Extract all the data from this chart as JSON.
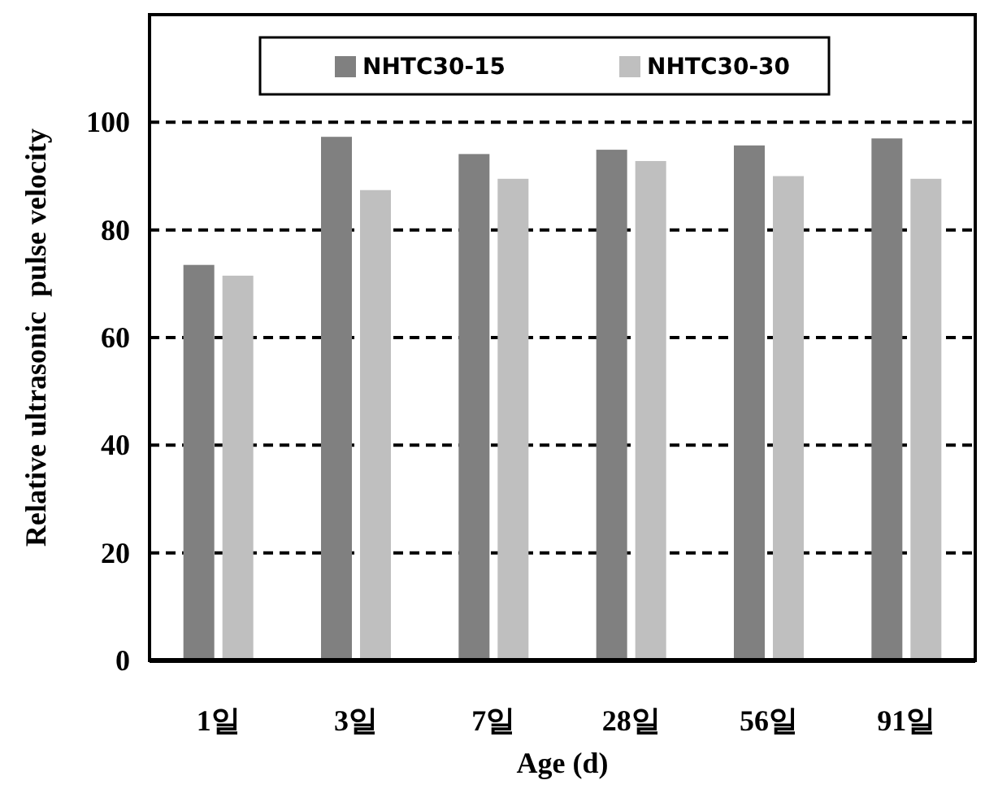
{
  "chart_data": {
    "type": "bar",
    "xlabel": "Age (d)",
    "ylabel": "Relative ultrasonic  pulse velocity",
    "categories": [
      "1일",
      "3일",
      "7일",
      "28일",
      "56일",
      "91일"
    ],
    "series": [
      {
        "name": "NHTC30-15",
        "color": "#808080",
        "values": [
          73.5,
          97.3,
          94.1,
          94.9,
          95.7,
          97.0
        ]
      },
      {
        "name": "NHTC30-30",
        "color": "#bfbfbf",
        "values": [
          71.5,
          87.4,
          89.5,
          92.8,
          90.0,
          89.5
        ]
      }
    ],
    "ylim": [
      0,
      120
    ],
    "yticks": [
      0,
      20,
      40,
      60,
      80,
      100
    ],
    "grid": "y",
    "legend": "top"
  }
}
